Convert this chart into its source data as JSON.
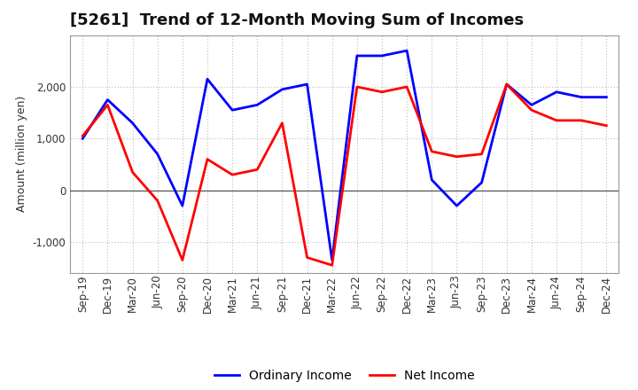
{
  "title": "[5261]  Trend of 12-Month Moving Sum of Incomes",
  "ylabel": "Amount (million yen)",
  "legend_labels": [
    "Ordinary Income",
    "Net Income"
  ],
  "ordinary_income_color": "#0000FF",
  "net_income_color": "#FF0000",
  "line_width": 2.0,
  "x_labels": [
    "Sep-19",
    "Dec-19",
    "Mar-20",
    "Jun-20",
    "Sep-20",
    "Dec-20",
    "Mar-21",
    "Jun-21",
    "Sep-21",
    "Dec-21",
    "Mar-22",
    "Jun-22",
    "Sep-22",
    "Dec-22",
    "Mar-23",
    "Jun-23",
    "Sep-23",
    "Dec-23",
    "Mar-24",
    "Jun-24",
    "Sep-24",
    "Dec-24"
  ],
  "ordinary_income": [
    1000,
    1750,
    1300,
    700,
    -300,
    2150,
    1550,
    1650,
    1950,
    2050,
    -1350,
    2600,
    2600,
    2700,
    200,
    -300,
    150,
    2050,
    1650,
    1900,
    1800,
    1800
  ],
  "net_income": [
    1050,
    1650,
    350,
    -200,
    -1350,
    600,
    300,
    400,
    1300,
    -1300,
    -1450,
    2000,
    1900,
    2000,
    750,
    650,
    700,
    2050,
    1550,
    1350,
    1350,
    1250
  ],
  "ylim": [
    -1600,
    3000
  ],
  "yticks": [
    -1000,
    0,
    1000,
    2000
  ],
  "background_color": "#FFFFFF",
  "grid_color": "#BBBBBB",
  "title_fontsize": 13,
  "axis_fontsize": 9,
  "tick_fontsize": 8.5
}
